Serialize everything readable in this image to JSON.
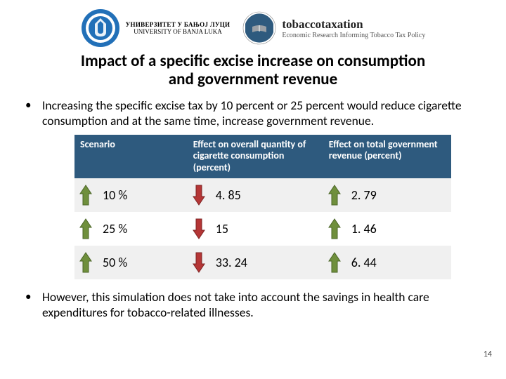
{
  "logos": {
    "uni_name_sr": "УНИВЕРЗИТЕТ У БАЊОЈ ЛУЦИ",
    "uni_name_en": "UNIVERSITY OF BANJA LUKA",
    "tt_brand": "tobaccotaxation",
    "tt_sub": "Economic Research Informing Tobacco Tax Policy",
    "uni_seal_colors": {
      "outer": "#2270b8",
      "ring": "#ffffff",
      "inner": "#2270b8"
    },
    "tt_seal_colors": {
      "band": "#2e5a7e",
      "book": "#9aa0a6"
    }
  },
  "title_line1": "Impact of a specific excise increase on consumption",
  "title_line2": "and government revenue",
  "bullet1": "Increasing the specific excise tax by 10 percent or 25 percent would reduce cigarette consumption and at the same time, increase government revenue.",
  "bullet2": "However, this simulation does not take into account the savings in health care expenditures for tobacco-related illnesses.",
  "table": {
    "header_bg": "#2e5a7e",
    "header_fg": "#ffffff",
    "row_alt_bg": "#f0f0f0",
    "arrow_up_fill": "#6f8f3c",
    "arrow_up_stroke": "#4a6426",
    "arrow_down_fill": "#b53636",
    "arrow_down_stroke": "#7d2323",
    "columns": {
      "scenario": "Scenario",
      "effect_consumption": "Effect on overall quantity of cigarette consumption (percent)",
      "effect_revenue": "Effect on total government revenue (percent)"
    },
    "rows": [
      {
        "scenario": "10 %",
        "scenario_dir": "up",
        "consumption": "4. 85",
        "consumption_dir": "down",
        "revenue": "2. 79",
        "revenue_dir": "up"
      },
      {
        "scenario": "25 %",
        "scenario_dir": "up",
        "consumption": "15",
        "consumption_dir": "down",
        "revenue": "1. 46",
        "revenue_dir": "up"
      },
      {
        "scenario": "50 %",
        "scenario_dir": "up",
        "consumption": "33. 24",
        "consumption_dir": "down",
        "revenue": "6. 44",
        "revenue_dir": "up"
      }
    ]
  },
  "page_number": "14"
}
